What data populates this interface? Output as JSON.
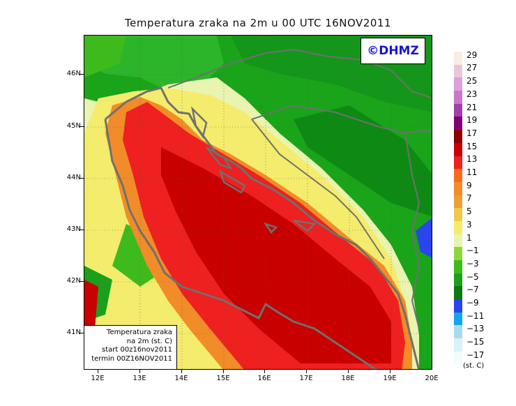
{
  "title": "Temperatura zraka na 2m u 00 UTC 16NOV2011",
  "logo": "©DHMZ",
  "info_box": {
    "line1": "Temperatura zraka",
    "line2": "na 2m (st. C)",
    "line3": "start 00z16nov2011",
    "line4": "termin 00Z16NOV2011"
  },
  "lat_labels": [
    "46N",
    "45N",
    "44N",
    "43N",
    "42N",
    "41N"
  ],
  "lon_labels": [
    "12E",
    "13E",
    "14E",
    "15E",
    "16E",
    "17E",
    "18E",
    "19E",
    "20E"
  ],
  "colorbar": {
    "labels": [
      "29",
      "27",
      "25",
      "23",
      "21",
      "19",
      "17",
      "15",
      "13",
      "11",
      "9",
      "7",
      "5",
      "3",
      "1",
      "−1",
      "−3",
      "−5",
      "−7",
      "−9",
      "−11",
      "−13",
      "−15",
      "−17"
    ],
    "colors": [
      "#fbeee0",
      "#e6c8d8",
      "#dca0dc",
      "#c878c8",
      "#a040a8",
      "#800078",
      "#8c0000",
      "#c80000",
      "#ee2020",
      "#fa6a1a",
      "#f28c28",
      "#ec9e3a",
      "#f2c84a",
      "#f4ec6c",
      "#e8f4b0",
      "#8ed83c",
      "#3ebb1c",
      "#1ca01c",
      "#0a7a12",
      "#2a44ee",
      "#14a4ea",
      "#a8dcec",
      "#d8f2f8",
      "#f2fcfc"
    ],
    "unit": "(st. C)"
  }
}
